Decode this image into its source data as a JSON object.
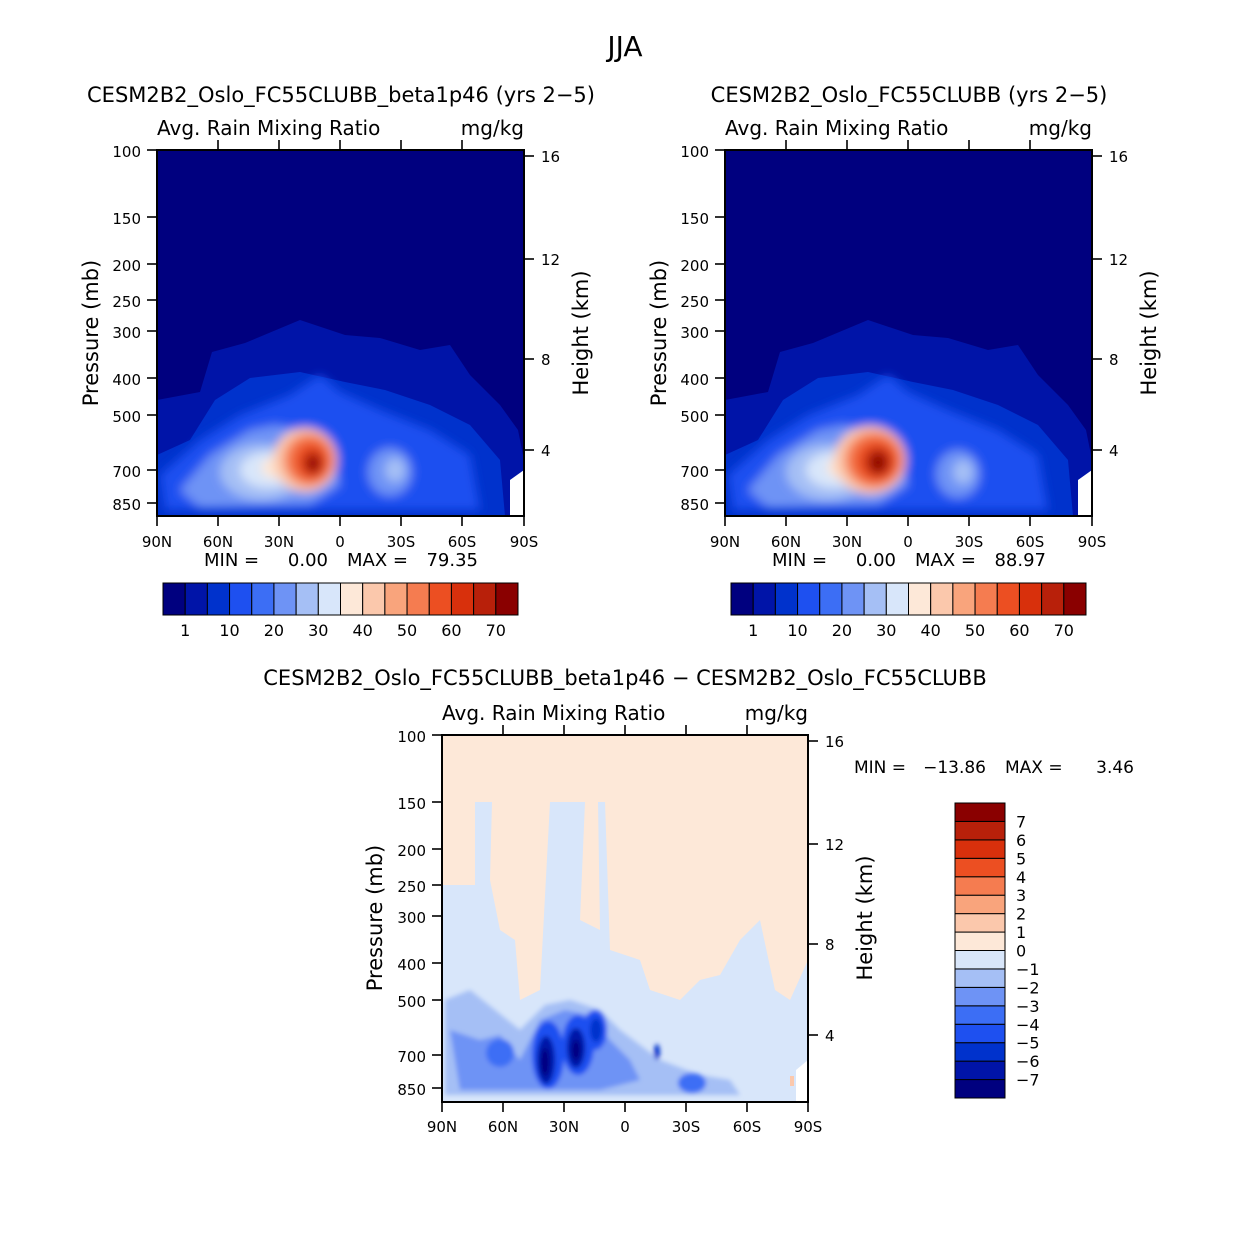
{
  "figure_title": "JJA",
  "panels": [
    {
      "id": "model",
      "case_title": "CESM2B2_Oslo_FC55CLUBB_beta1p46 (yrs 2-5)",
      "variable": "Avg. Rain Mixing Ratio",
      "units": "mg/kg",
      "min_label": "MIN =",
      "min_value": "0.00",
      "max_label": "MAX =",
      "max_value": "79.35"
    },
    {
      "id": "control",
      "case_title": "CESM2B2_Oslo_FC55CLUBB (yrs 2-5)",
      "variable": "Avg. Rain Mixing Ratio",
      "units": "mg/kg",
      "min_label": "MIN =",
      "min_value": "0.00",
      "max_label": "MAX =",
      "max_value": "88.97"
    },
    {
      "id": "difference",
      "case_title": "CESM2B2_Oslo_FC55CLUBB_beta1p46 - CESM2B2_Oslo_FC55CLUBB",
      "variable": "Avg. Rain Mixing Ratio",
      "units": "mg/kg",
      "min_label": "MIN =",
      "min_value": "-13.86",
      "max_label": "MAX =",
      "max_value": "3.46"
    }
  ],
  "colorbars": {
    "model": {
      "colors": [
        "#00007f",
        "#0014a8",
        "#0032cc",
        "#1e50f0",
        "#3c6ef5",
        "#6e93f5",
        "#a5bff5",
        "#d8e6fa",
        "#fde8d8",
        "#fbc8ac",
        "#f9a47c",
        "#f57c50",
        "#ec4f22",
        "#d8300c",
        "#b8200a",
        "#8a0000"
      ],
      "labels": [
        "1",
        "10",
        "20",
        "30",
        "40",
        "50",
        "60",
        "70"
      ]
    },
    "difference": {
      "colors": [
        "#00007f",
        "#0014a8",
        "#0032cc",
        "#1e50f0",
        "#3c6ef5",
        "#6e93f5",
        "#a5bff5",
        "#d8e6fa",
        "#fde8d8",
        "#fbc8ac",
        "#f9a47c",
        "#f57c50",
        "#ec4f22",
        "#d8300c",
        "#b8200a",
        "#8a0000"
      ],
      "labels": [
        "-7",
        "-6",
        "-5",
        "-4",
        "-3",
        "-2",
        "-1",
        "0",
        "1",
        "2",
        "3",
        "4",
        "5",
        "6",
        "7"
      ]
    }
  },
  "chart_data": [
    {
      "type": "heatmap",
      "panel": "model",
      "title": "CESM2B2_Oslo_FC55CLUBB_beta1p46 (yrs 2-5)",
      "xlabel": "",
      "ylabel": "Pressure (mb)",
      "y2label": "Height (km)",
      "x_ticks": [
        "90N",
        "60N",
        "30N",
        "0",
        "30S",
        "60S",
        "90S"
      ],
      "y_ticks": [
        100,
        150,
        200,
        250,
        300,
        400,
        500,
        700,
        850
      ],
      "y2_ticks": [
        16,
        12,
        8,
        4
      ],
      "xlim": [
        90,
        -90
      ],
      "ylim": [
        1000,
        100
      ],
      "min": 0.0,
      "max": 79.35,
      "peak": {
        "lat": 15,
        "pressure": 700,
        "value": 79.35
      }
    },
    {
      "type": "heatmap",
      "panel": "control",
      "title": "CESM2B2_Oslo_FC55CLUBB (yrs 2-5)",
      "xlabel": "",
      "ylabel": "Pressure (mb)",
      "y2label": "Height (km)",
      "x_ticks": [
        "90N",
        "60N",
        "30N",
        "0",
        "30S",
        "60S",
        "90S"
      ],
      "y_ticks": [
        100,
        150,
        200,
        250,
        300,
        400,
        500,
        700,
        850
      ],
      "y2_ticks": [
        16,
        12,
        8,
        4
      ],
      "xlim": [
        90,
        -90
      ],
      "ylim": [
        1000,
        100
      ],
      "min": 0.0,
      "max": 88.97,
      "peak": {
        "lat": 15,
        "pressure": 700,
        "value": 88.97
      }
    },
    {
      "type": "heatmap",
      "panel": "difference",
      "title": "CESM2B2_Oslo_FC55CLUBB_beta1p46 - CESM2B2_Oslo_FC55CLUBB",
      "xlabel": "",
      "ylabel": "Pressure (mb)",
      "y2label": "Height (km)",
      "x_ticks": [
        "90N",
        "60N",
        "30N",
        "0",
        "30S",
        "60S",
        "90S"
      ],
      "y_ticks": [
        100,
        150,
        200,
        250,
        300,
        400,
        500,
        700,
        850
      ],
      "y2_ticks": [
        16,
        12,
        8,
        4
      ],
      "xlim": [
        90,
        -90
      ],
      "ylim": [
        1000,
        100
      ],
      "min": -13.86,
      "max": 3.46
    }
  ]
}
